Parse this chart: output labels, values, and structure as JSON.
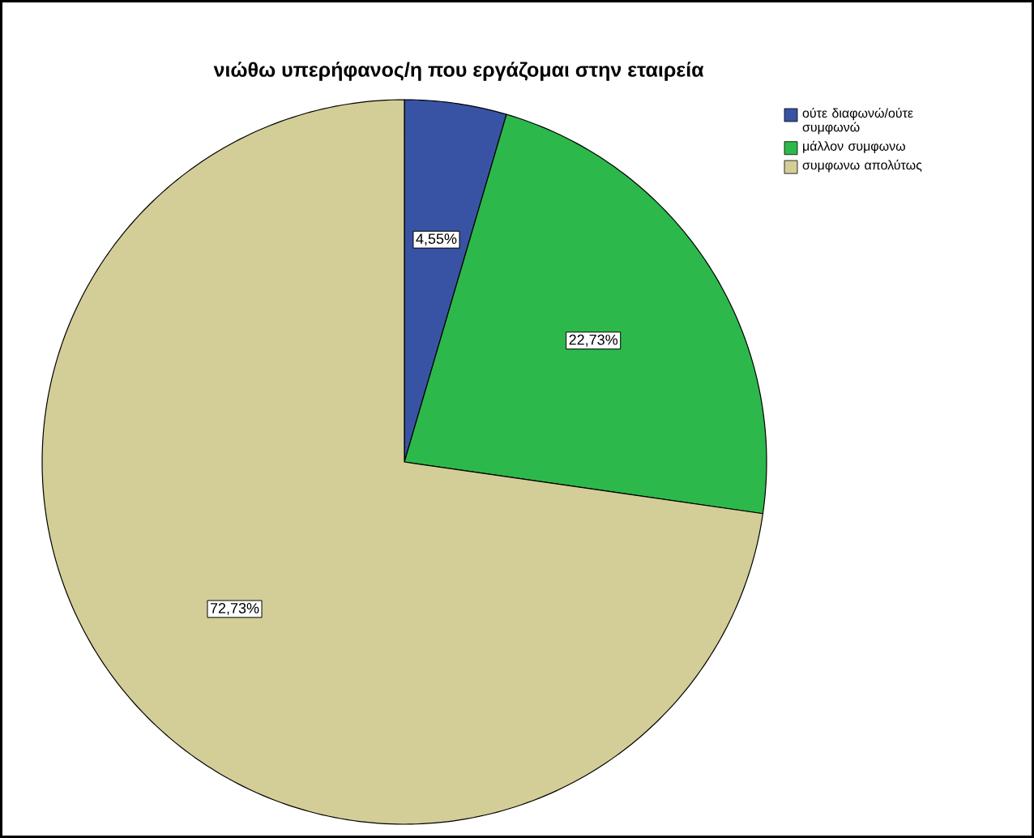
{
  "chart_data": {
    "type": "pie",
    "title": "νιώθω υπερήφανος/η που εργάζομαι στην εταιρεία",
    "categories": [
      "ούτε διαφωνώ/ούτε συμφωνώ",
      "μάλλον συμφωνω",
      "συμφωνω απολύτως"
    ],
    "values": [
      4.55,
      22.73,
      72.73
    ],
    "value_labels": [
      "4,55%",
      "22,73%",
      "72,73%"
    ],
    "colors": [
      "#3953a4",
      "#2db84b",
      "#d3ce97"
    ],
    "legend": "top right"
  }
}
